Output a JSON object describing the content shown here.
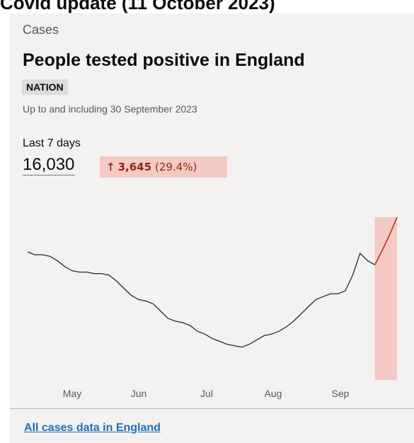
{
  "page": {
    "heading": "Covid update (11 October 2023)"
  },
  "card": {
    "section_label": "Cases",
    "title": "People tested positive in England",
    "area_tag": "NATION",
    "updated": "Up to and including 30 September 2023",
    "period_label": "Last 7 days",
    "value": "16,030",
    "change": {
      "arrow": "↑",
      "amount": "3,645",
      "percent": "(29.4%)"
    },
    "footer_link": "All cases data in England"
  },
  "colors": {
    "card_background": "#f3f2f1",
    "line": "#2b2b2b",
    "highlight_line": "#b23a25",
    "highlight_fill": "#f5c9c4",
    "link": "#1d70b8"
  },
  "chart_data": {
    "type": "area",
    "x_labels": [
      "May",
      "Jun",
      "Jul",
      "Aug",
      "Sep"
    ],
    "highlight": "last 7 days",
    "series": [
      {
        "values": [
          0.76,
          0.74,
          0.74,
          0.73,
          0.7,
          0.66,
          0.63,
          0.62,
          0.62,
          0.61,
          0.61,
          0.6,
          0.56,
          0.51,
          0.46,
          0.43,
          0.42,
          0.4,
          0.35,
          0.3,
          0.28,
          0.27,
          0.25,
          0.21,
          0.19,
          0.16,
          0.14,
          0.12,
          0.11,
          0.1,
          0.12,
          0.15,
          0.18,
          0.19,
          0.21,
          0.24,
          0.28,
          0.33,
          0.38,
          0.43,
          0.45,
          0.47,
          0.47,
          0.49,
          0.6,
          0.75,
          0.7,
          0.67,
          0.77,
          0.88,
          1.0
        ]
      }
    ]
  }
}
